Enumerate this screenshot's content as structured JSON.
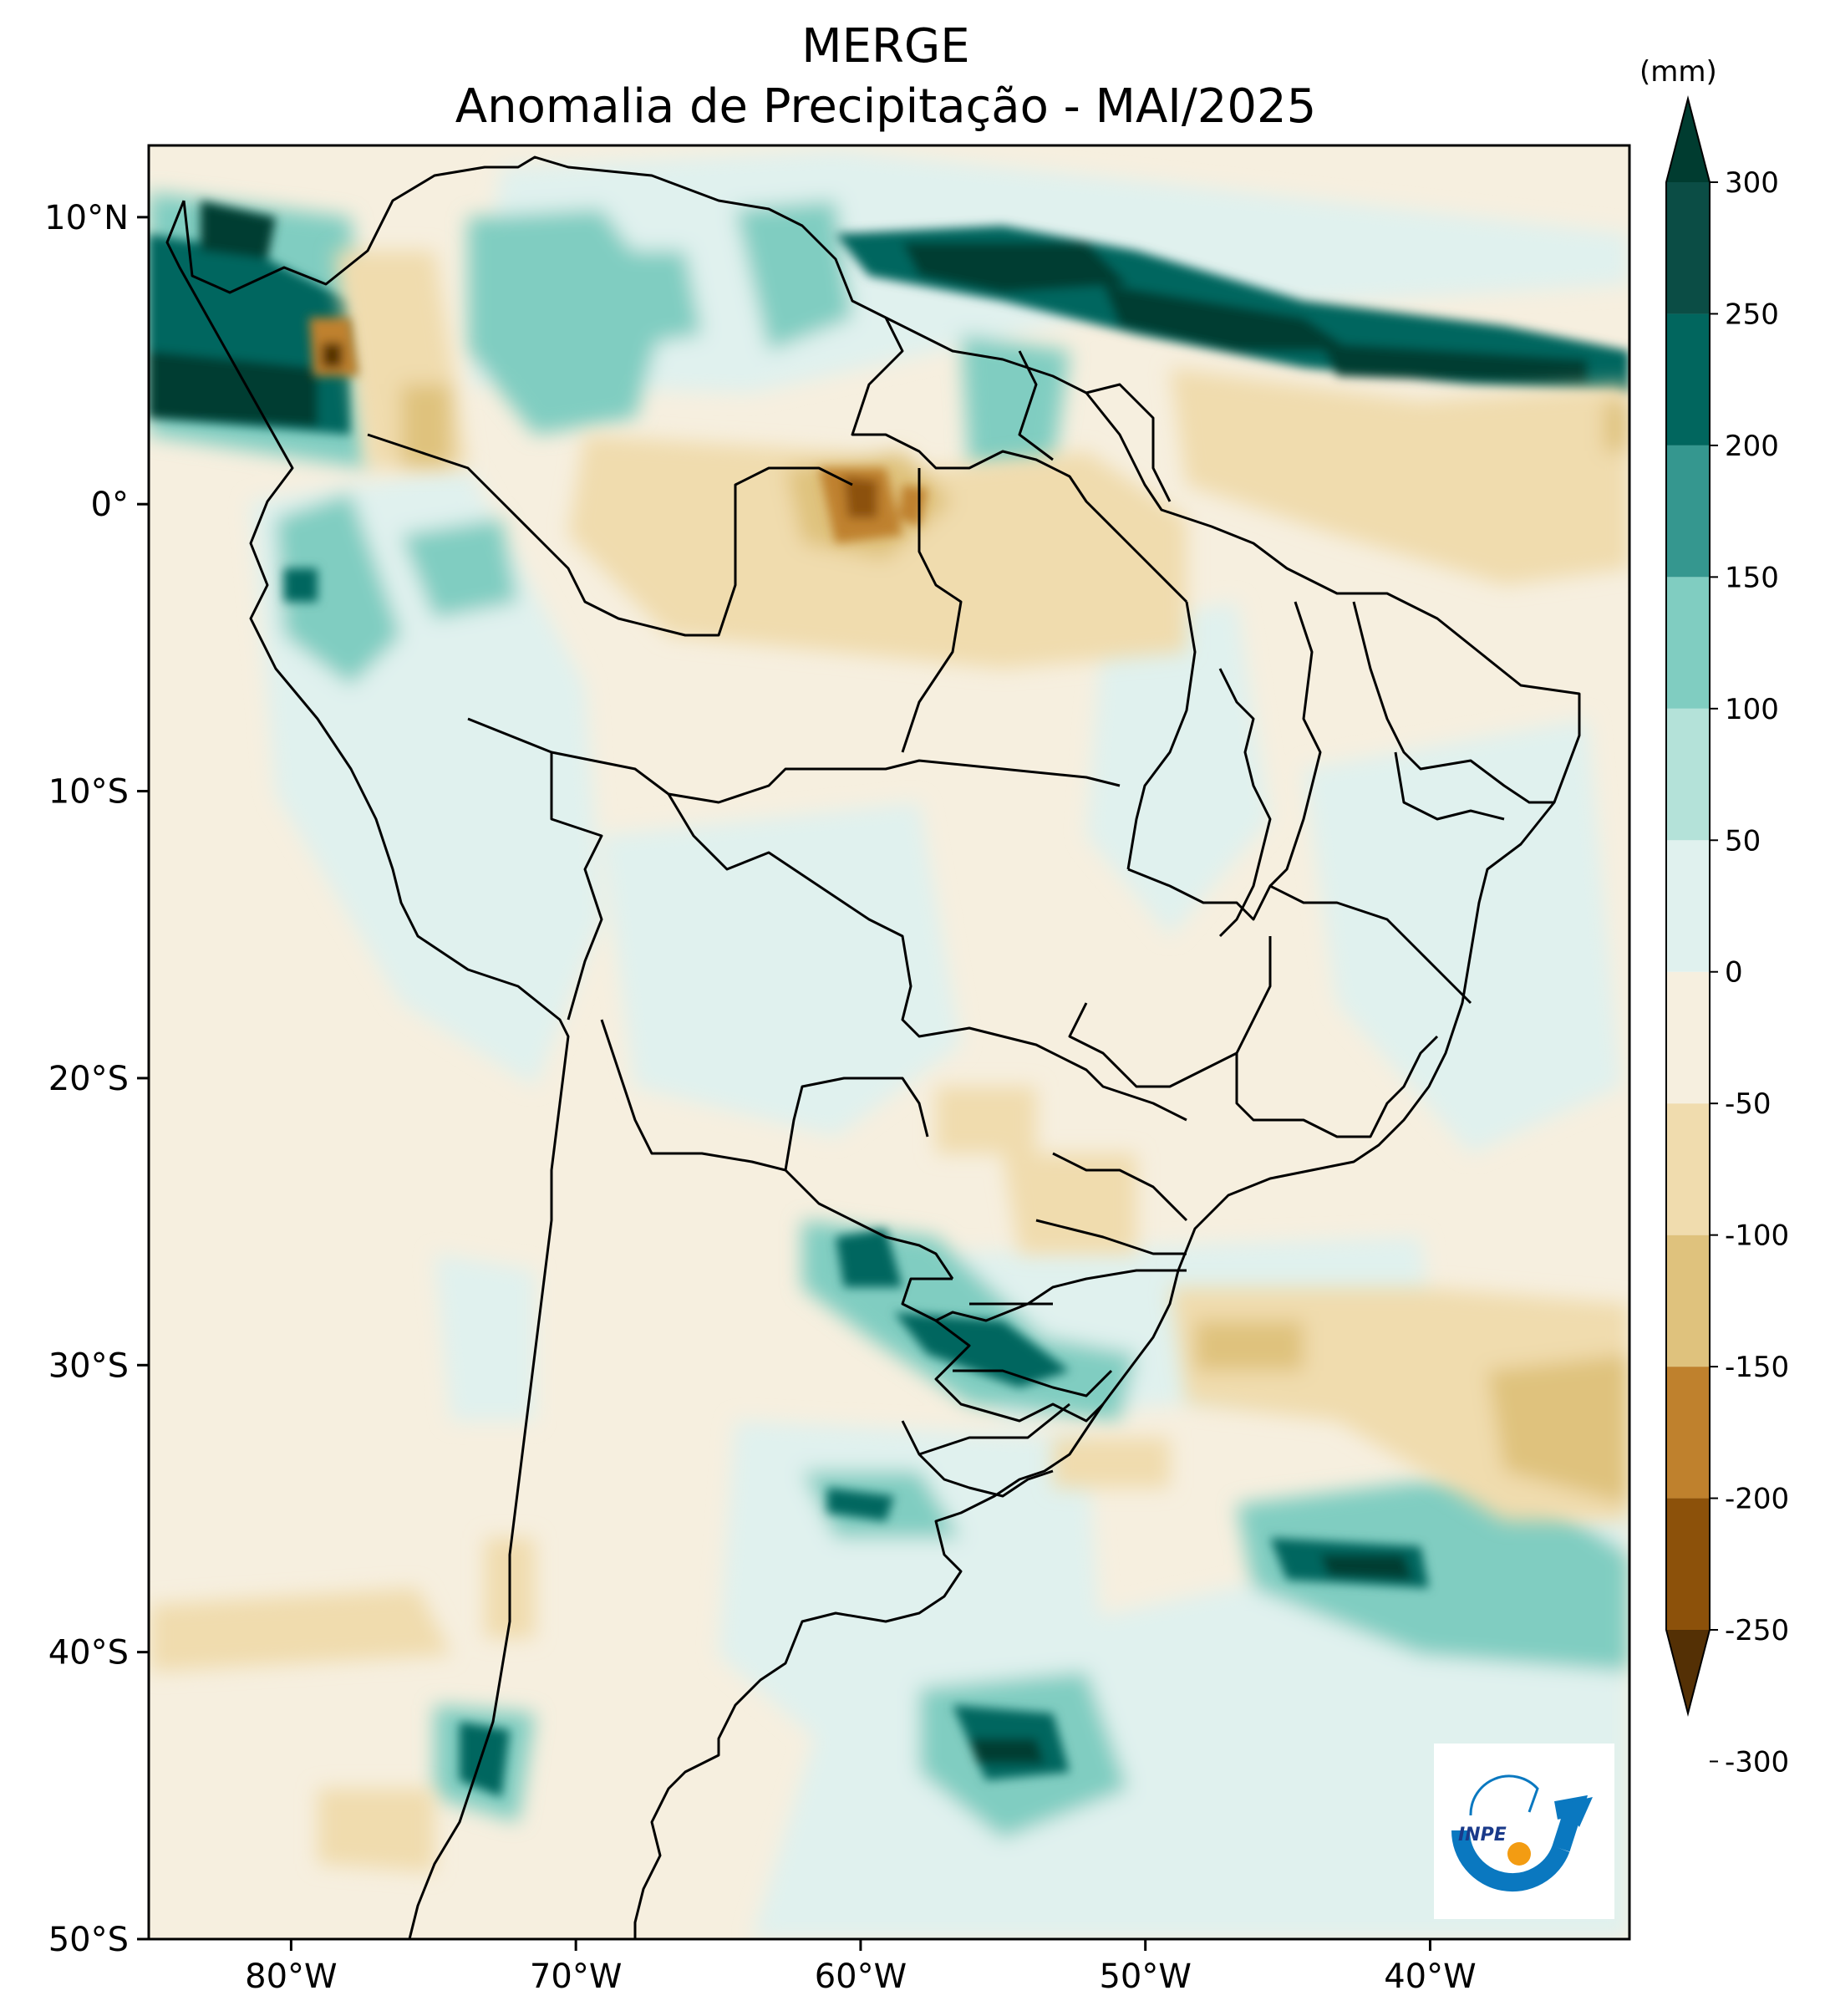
{
  "title": "MERGE",
  "subtitle": "Anomalia de Precipitação - MAI/2025",
  "colorbar": {
    "units": "(mm)",
    "levels": [
      -300,
      -250,
      -200,
      -150,
      -100,
      -50,
      0,
      50,
      100,
      150,
      200,
      250,
      300
    ],
    "labels": [
      "300",
      "250",
      "200",
      "150",
      "100",
      "50",
      "0",
      "-50",
      "-100",
      "-150",
      "-200",
      "-250",
      "-300"
    ],
    "colors": [
      "#543005",
      "#8c510a",
      "#bf812d",
      "#dfc27d",
      "#f0dcae",
      "#f6efdf",
      "#e0f1ee",
      "#b4e2d9",
      "#80cdc1",
      "#35978f",
      "#01665e",
      "#0b4d45",
      "#003c30"
    ]
  },
  "map": {
    "lon_range": [
      -85,
      -33
    ],
    "lat_range": [
      -50,
      12.5
    ],
    "lon_ticks": [
      "80°W",
      "70°W",
      "60°W",
      "50°W",
      "40°W"
    ],
    "lat_ticks": [
      "10°N",
      "0°",
      "10°S",
      "20°S",
      "30°S",
      "40°S",
      "50°S"
    ],
    "logo": "INPE"
  },
  "icons": {
    "logo": "inpe-logo-icon"
  }
}
